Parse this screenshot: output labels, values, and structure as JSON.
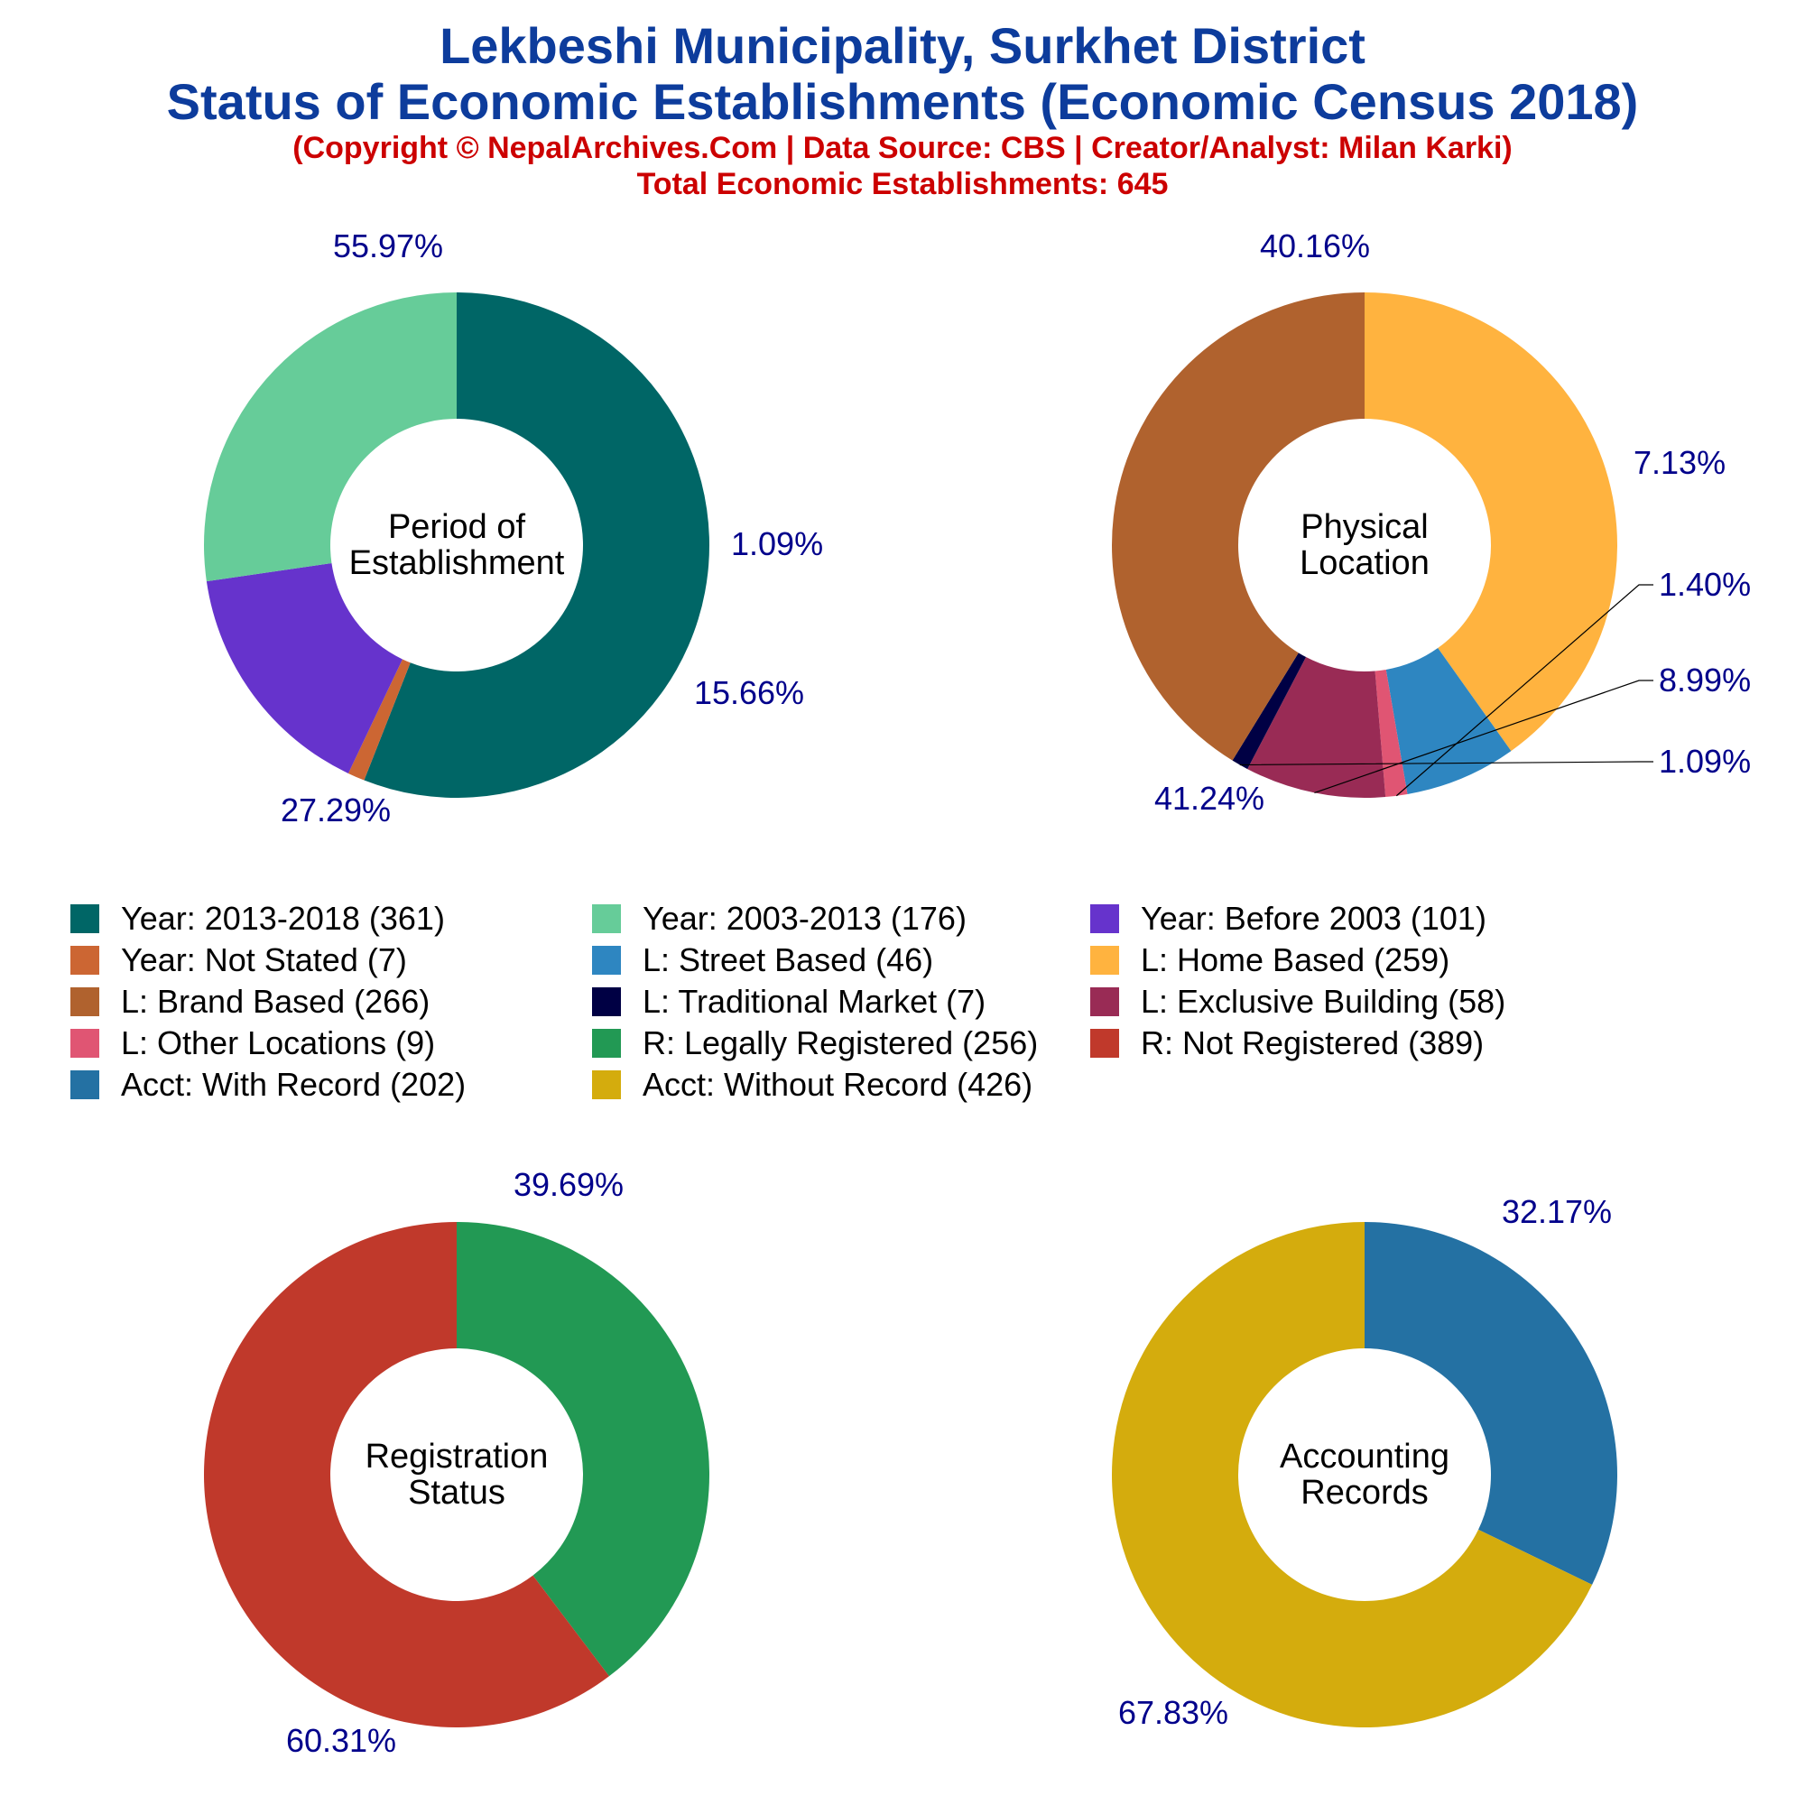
{
  "header": {
    "title_line1": "Lekbeshi Municipality, Surkhet District",
    "title_line2": "Status of Economic Establishments (Economic Census 2018)",
    "copyright": "(Copyright © NepalArchives.Com | Data Source: CBS | Creator/Analyst: Milan Karki)",
    "total": "Total Economic Establishments: 645"
  },
  "colors": {
    "title": "#0d3c9c",
    "subtitle": "#cc0000",
    "percent_label": "#00008b"
  },
  "chart_data": [
    {
      "type": "pie",
      "title": "Period of Establishment",
      "center_label": [
        "Period of",
        "Establishment"
      ],
      "slices": [
        {
          "label": "Year: 2013-2018",
          "value": 361,
          "percent": "55.97%",
          "color": "#006666"
        },
        {
          "label": "Year: Not Stated",
          "value": 7,
          "percent": "1.09%",
          "color": "#cc6633"
        },
        {
          "label": "Year: Before 2003",
          "value": 101,
          "percent": "15.66%",
          "color": "#6633cc"
        },
        {
          "label": "Year: 2003-2013",
          "value": 176,
          "percent": "27.29%",
          "color": "#66cc99"
        }
      ]
    },
    {
      "type": "pie",
      "title": "Physical Location",
      "center_label": [
        "Physical",
        "Location"
      ],
      "slices": [
        {
          "label": "L: Home Based",
          "value": 259,
          "percent": "40.16%",
          "color": "#ffb33f"
        },
        {
          "label": "L: Street Based",
          "value": 46,
          "percent": "7.13%",
          "color": "#2e86c1"
        },
        {
          "label": "L: Other Locations",
          "value": 9,
          "percent": "1.40%",
          "color": "#e05573"
        },
        {
          "label": "L: Exclusive Building",
          "value": 58,
          "percent": "8.99%",
          "color": "#992b55"
        },
        {
          "label": "L: Traditional Market",
          "value": 7,
          "percent": "1.09%",
          "color": "#000044"
        },
        {
          "label": "L: Brand Based",
          "value": 266,
          "percent": "41.24%",
          "color": "#b0622e"
        }
      ]
    },
    {
      "type": "pie",
      "title": "Registration Status",
      "center_label": [
        "Registration",
        "Status"
      ],
      "slices": [
        {
          "label": "R: Legally Registered",
          "value": 256,
          "percent": "39.69%",
          "color": "#229954"
        },
        {
          "label": "R: Not Registered",
          "value": 389,
          "percent": "60.31%",
          "color": "#c0392b"
        }
      ]
    },
    {
      "type": "pie",
      "title": "Accounting Records",
      "center_label": [
        "Accounting",
        "Records"
      ],
      "slices": [
        {
          "label": "Acct: With Record",
          "value": 202,
          "percent": "32.17%",
          "color": "#2471a3"
        },
        {
          "label": "Acct: Without Record",
          "value": 426,
          "percent": "67.83%",
          "color": "#d4ac0d"
        }
      ]
    }
  ],
  "legend": [
    {
      "label": "Year: 2013-2018 (361)",
      "color": "#006666"
    },
    {
      "label": "Year: 2003-2013 (176)",
      "color": "#66cc99"
    },
    {
      "label": "Year: Before 2003 (101)",
      "color": "#6633cc"
    },
    {
      "label": "Year: Not Stated (7)",
      "color": "#cc6633"
    },
    {
      "label": "L: Street Based (46)",
      "color": "#2e86c1"
    },
    {
      "label": "L: Home Based (259)",
      "color": "#ffb33f"
    },
    {
      "label": "L: Brand Based (266)",
      "color": "#b0622e"
    },
    {
      "label": "L: Traditional Market (7)",
      "color": "#000044"
    },
    {
      "label": "L: Exclusive Building (58)",
      "color": "#992b55"
    },
    {
      "label": "L: Other Locations (9)",
      "color": "#e05573"
    },
    {
      "label": "R: Legally Registered (256)",
      "color": "#229954"
    },
    {
      "label": "R: Not Registered (389)",
      "color": "#c0392b"
    },
    {
      "label": "Acct: With Record (202)",
      "color": "#2471a3"
    },
    {
      "label": "Acct: Without Record (426)",
      "color": "#d4ac0d"
    }
  ]
}
